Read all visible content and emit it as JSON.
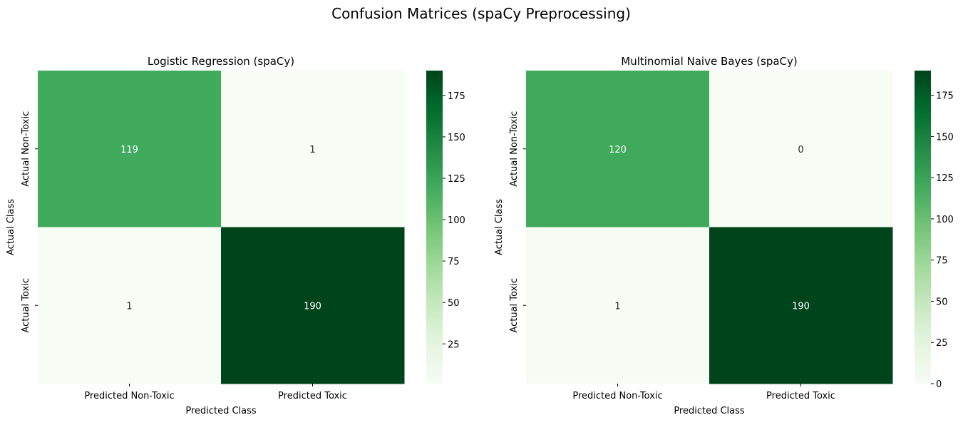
{
  "figure": {
    "suptitle": "Confusion Matrices (spaCy Preprocessing)"
  },
  "chart_data": [
    {
      "type": "heatmap",
      "title": "Logistic Regression (spaCy)",
      "xlabel": "Predicted Class",
      "ylabel": "Actual Class",
      "x_categories": [
        "Predicted Non-Toxic",
        "Predicted Toxic"
      ],
      "y_categories": [
        "Actual Non-Toxic",
        "Actual Toxic"
      ],
      "values": [
        [
          119,
          1
        ],
        [
          1,
          190
        ]
      ],
      "colormap": "Greens",
      "colorbar": {
        "min": 1,
        "max": 190,
        "ticks": [
          25,
          50,
          75,
          100,
          125,
          150,
          175
        ]
      }
    },
    {
      "type": "heatmap",
      "title": "Multinomial Naive Bayes (spaCy)",
      "xlabel": "Predicted Class",
      "ylabel": "Actual Class",
      "x_categories": [
        "Predicted Non-Toxic",
        "Predicted Toxic"
      ],
      "y_categories": [
        "Actual Non-Toxic",
        "Actual Toxic"
      ],
      "values": [
        [
          120,
          0
        ],
        [
          1,
          190
        ]
      ],
      "colormap": "Greens",
      "colorbar": {
        "min": 0,
        "max": 190,
        "ticks": [
          0,
          25,
          50,
          75,
          100,
          125,
          150,
          175
        ]
      }
    }
  ]
}
